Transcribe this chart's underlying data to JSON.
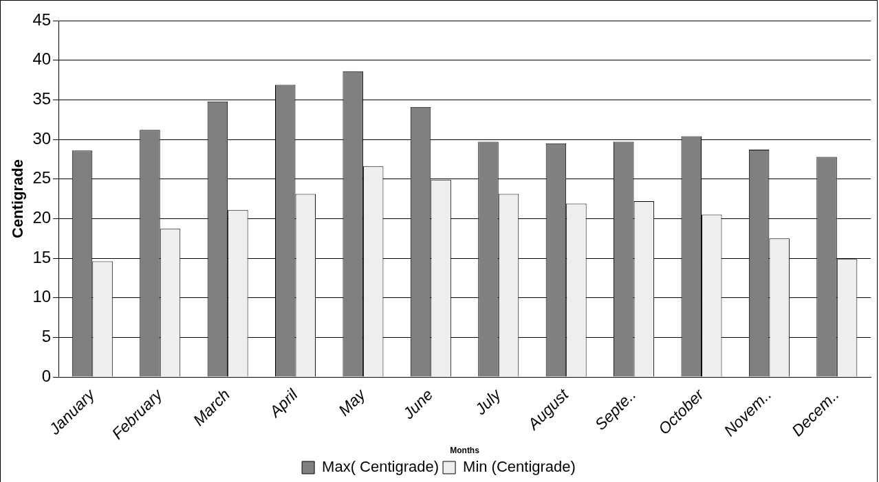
{
  "chart_data": {
    "type": "bar",
    "xlabel": "Months",
    "ylabel": "Centigrade",
    "categories": [
      "January",
      "February",
      "March",
      "April",
      "May",
      "June",
      "July",
      "August",
      "Septe..",
      "October",
      "Novem..",
      "Decem.."
    ],
    "series": [
      {
        "name": "Max( Centigrade)",
        "color": "#808080",
        "values": [
          28.6,
          31.2,
          34.8,
          36.9,
          38.6,
          34.1,
          29.7,
          29.5,
          29.7,
          30.4,
          28.7,
          27.8
        ]
      },
      {
        "name": "Min (Centigrade)",
        "color": "#eeeeee",
        "values": [
          14.6,
          18.7,
          21.1,
          23.1,
          26.6,
          24.9,
          23.1,
          21.9,
          22.2,
          20.5,
          17.5,
          14.9
        ]
      }
    ],
    "ylim": [
      0,
      45
    ],
    "yticks": [
      0,
      5,
      10,
      15,
      20,
      25,
      30,
      35,
      40,
      45
    ],
    "grid": "y",
    "legend": "bottom"
  }
}
